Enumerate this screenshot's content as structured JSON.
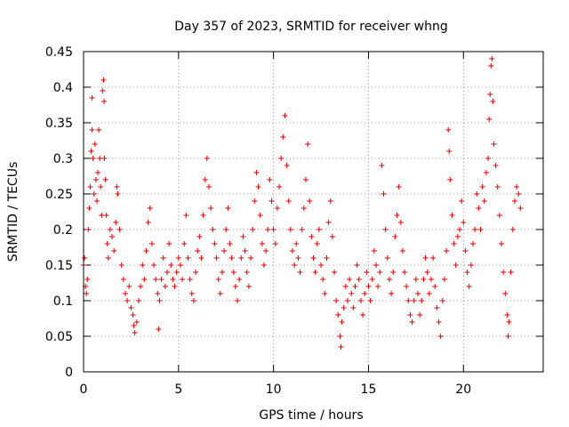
{
  "chart_data": {
    "type": "scatter",
    "title": "Day 357 of 2023, SRMTID for receiver whng",
    "xlabel": "GPS time / hours",
    "ylabel": "SRMTID / TECUs",
    "xlim": [
      0,
      24.2
    ],
    "ylim": [
      0,
      0.45
    ],
    "xticks": [
      0,
      5,
      10,
      15,
      20
    ],
    "xtick_labels": [
      "0",
      "5",
      "10",
      "15",
      "20"
    ],
    "yticks": [
      0,
      0.05,
      0.1,
      0.15,
      0.2,
      0.25,
      0.3,
      0.35,
      0.4,
      0.45
    ],
    "ytick_labels": [
      "0",
      "0.05",
      "0.1",
      "0.15",
      "0.2",
      "0.25",
      "0.3",
      "0.35",
      "0.4",
      "0.45"
    ],
    "grid": true,
    "marker": "+",
    "marker_color": "#e00000",
    "series": [
      {
        "name": "SRMTID",
        "points": [
          [
            0.0,
            0.15
          ],
          [
            0.05,
            0.16
          ],
          [
            0.1,
            0.12
          ],
          [
            0.15,
            0.11
          ],
          [
            0.2,
            0.13
          ],
          [
            0.25,
            0.2
          ],
          [
            0.3,
            0.23
          ],
          [
            0.35,
            0.26
          ],
          [
            0.4,
            0.31
          ],
          [
            0.45,
            0.34
          ],
          [
            0.45,
            0.385
          ],
          [
            0.5,
            0.3
          ],
          [
            0.55,
            0.25
          ],
          [
            0.6,
            0.32
          ],
          [
            0.65,
            0.27
          ],
          [
            0.7,
            0.24
          ],
          [
            0.75,
            0.28
          ],
          [
            0.8,
            0.34
          ],
          [
            0.85,
            0.3
          ],
          [
            0.9,
            0.26
          ],
          [
            0.95,
            0.22
          ],
          [
            1.0,
            0.395
          ],
          [
            1.05,
            0.41
          ],
          [
            1.08,
            0.38
          ],
          [
            1.1,
            0.3
          ],
          [
            1.15,
            0.27
          ],
          [
            1.2,
            0.22
          ],
          [
            1.25,
            0.18
          ],
          [
            1.3,
            0.16
          ],
          [
            1.4,
            0.2
          ],
          [
            1.5,
            0.19
          ],
          [
            1.6,
            0.17
          ],
          [
            1.7,
            0.21
          ],
          [
            1.75,
            0.26
          ],
          [
            1.8,
            0.25
          ],
          [
            1.9,
            0.2
          ],
          [
            2.0,
            0.15
          ],
          [
            2.1,
            0.13
          ],
          [
            2.2,
            0.11
          ],
          [
            2.3,
            0.1
          ],
          [
            2.4,
            0.12
          ],
          [
            2.5,
            0.09
          ],
          [
            2.6,
            0.08
          ],
          [
            2.65,
            0.065
          ],
          [
            2.7,
            0.055
          ],
          [
            2.8,
            0.07
          ],
          [
            2.9,
            0.1
          ],
          [
            3.0,
            0.12
          ],
          [
            3.1,
            0.15
          ],
          [
            3.2,
            0.13
          ],
          [
            3.3,
            0.17
          ],
          [
            3.4,
            0.21
          ],
          [
            3.5,
            0.23
          ],
          [
            3.6,
            0.18
          ],
          [
            3.7,
            0.15
          ],
          [
            3.8,
            0.13
          ],
          [
            3.9,
            0.11
          ],
          [
            3.95,
            0.06
          ],
          [
            4.0,
            0.1
          ],
          [
            4.1,
            0.13
          ],
          [
            4.2,
            0.16
          ],
          [
            4.3,
            0.12
          ],
          [
            4.4,
            0.14
          ],
          [
            4.5,
            0.18
          ],
          [
            4.6,
            0.15
          ],
          [
            4.7,
            0.13
          ],
          [
            4.8,
            0.12
          ],
          [
            4.9,
            0.14
          ],
          [
            5.0,
            0.16
          ],
          [
            5.1,
            0.15
          ],
          [
            5.2,
            0.13
          ],
          [
            5.3,
            0.18
          ],
          [
            5.4,
            0.22
          ],
          [
            5.5,
            0.16
          ],
          [
            5.6,
            0.13
          ],
          [
            5.7,
            0.11
          ],
          [
            5.8,
            0.1
          ],
          [
            5.9,
            0.14
          ],
          [
            6.0,
            0.17
          ],
          [
            6.1,
            0.19
          ],
          [
            6.2,
            0.16
          ],
          [
            6.3,
            0.22
          ],
          [
            6.4,
            0.27
          ],
          [
            6.5,
            0.3
          ],
          [
            6.6,
            0.26
          ],
          [
            6.7,
            0.23
          ],
          [
            6.8,
            0.2
          ],
          [
            6.9,
            0.18
          ],
          [
            7.0,
            0.16
          ],
          [
            7.1,
            0.13
          ],
          [
            7.2,
            0.11
          ],
          [
            7.3,
            0.14
          ],
          [
            7.4,
            0.17
          ],
          [
            7.5,
            0.2
          ],
          [
            7.6,
            0.23
          ],
          [
            7.7,
            0.18
          ],
          [
            7.8,
            0.16
          ],
          [
            7.9,
            0.14
          ],
          [
            8.0,
            0.12
          ],
          [
            8.1,
            0.1
          ],
          [
            8.2,
            0.13
          ],
          [
            8.3,
            0.16
          ],
          [
            8.4,
            0.19
          ],
          [
            8.5,
            0.17
          ],
          [
            8.6,
            0.14
          ],
          [
            8.7,
            0.12
          ],
          [
            8.8,
            0.16
          ],
          [
            8.9,
            0.2
          ],
          [
            9.0,
            0.24
          ],
          [
            9.1,
            0.28
          ],
          [
            9.2,
            0.26
          ],
          [
            9.3,
            0.22
          ],
          [
            9.4,
            0.18
          ],
          [
            9.5,
            0.15
          ],
          [
            9.6,
            0.17
          ],
          [
            9.7,
            0.2
          ],
          [
            9.8,
            0.27
          ],
          [
            9.9,
            0.24
          ],
          [
            10.0,
            0.2
          ],
          [
            10.1,
            0.18
          ],
          [
            10.2,
            0.23
          ],
          [
            10.3,
            0.26
          ],
          [
            10.4,
            0.3
          ],
          [
            10.5,
            0.33
          ],
          [
            10.6,
            0.36
          ],
          [
            10.7,
            0.29
          ],
          [
            10.8,
            0.24
          ],
          [
            10.9,
            0.2
          ],
          [
            11.0,
            0.17
          ],
          [
            11.1,
            0.15
          ],
          [
            11.2,
            0.18
          ],
          [
            11.3,
            0.16
          ],
          [
            11.4,
            0.14
          ],
          [
            11.5,
            0.2
          ],
          [
            11.6,
            0.23
          ],
          [
            11.7,
            0.27
          ],
          [
            11.8,
            0.32
          ],
          [
            11.9,
            0.24
          ],
          [
            12.0,
            0.19
          ],
          [
            12.1,
            0.16
          ],
          [
            12.2,
            0.14
          ],
          [
            12.3,
            0.18
          ],
          [
            12.4,
            0.2
          ],
          [
            12.5,
            0.15
          ],
          [
            12.6,
            0.13
          ],
          [
            12.7,
            0.11
          ],
          [
            12.8,
            0.16
          ],
          [
            12.9,
            0.21
          ],
          [
            13.0,
            0.24
          ],
          [
            13.1,
            0.19
          ],
          [
            13.2,
            0.14
          ],
          [
            13.3,
            0.1
          ],
          [
            13.4,
            0.08
          ],
          [
            13.5,
            0.05
          ],
          [
            13.55,
            0.035
          ],
          [
            13.6,
            0.07
          ],
          [
            13.7,
            0.09
          ],
          [
            13.8,
            0.12
          ],
          [
            13.9,
            0.1
          ],
          [
            14.0,
            0.13
          ],
          [
            14.1,
            0.11
          ],
          [
            14.2,
            0.09
          ],
          [
            14.3,
            0.12
          ],
          [
            14.4,
            0.15
          ],
          [
            14.5,
            0.13
          ],
          [
            14.6,
            0.1
          ],
          [
            14.7,
            0.08
          ],
          [
            14.8,
            0.11
          ],
          [
            14.9,
            0.14
          ],
          [
            15.0,
            0.12
          ],
          [
            15.1,
            0.1
          ],
          [
            15.2,
            0.13
          ],
          [
            15.3,
            0.17
          ],
          [
            15.4,
            0.15
          ],
          [
            15.5,
            0.12
          ],
          [
            15.6,
            0.14
          ],
          [
            15.7,
            0.29
          ],
          [
            15.8,
            0.25
          ],
          [
            15.9,
            0.2
          ],
          [
            16.0,
            0.16
          ],
          [
            16.1,
            0.13
          ],
          [
            16.2,
            0.11
          ],
          [
            16.3,
            0.14
          ],
          [
            16.4,
            0.19
          ],
          [
            16.5,
            0.22
          ],
          [
            16.6,
            0.26
          ],
          [
            16.7,
            0.21
          ],
          [
            16.8,
            0.17
          ],
          [
            16.9,
            0.14
          ],
          [
            17.0,
            0.12
          ],
          [
            17.1,
            0.1
          ],
          [
            17.2,
            0.08
          ],
          [
            17.3,
            0.07
          ],
          [
            17.4,
            0.1
          ],
          [
            17.5,
            0.13
          ],
          [
            17.6,
            0.11
          ],
          [
            17.7,
            0.08
          ],
          [
            17.8,
            0.1
          ],
          [
            17.9,
            0.13
          ],
          [
            18.0,
            0.16
          ],
          [
            18.1,
            0.14
          ],
          [
            18.2,
            0.11
          ],
          [
            18.3,
            0.13
          ],
          [
            18.4,
            0.16
          ],
          [
            18.5,
            0.12
          ],
          [
            18.6,
            0.09
          ],
          [
            18.7,
            0.07
          ],
          [
            18.8,
            0.05
          ],
          [
            18.9,
            0.1
          ],
          [
            19.0,
            0.13
          ],
          [
            19.1,
            0.17
          ],
          [
            19.2,
            0.34
          ],
          [
            19.25,
            0.31
          ],
          [
            19.3,
            0.27
          ],
          [
            19.4,
            0.22
          ],
          [
            19.5,
            0.18
          ],
          [
            19.6,
            0.15
          ],
          [
            19.7,
            0.19
          ],
          [
            19.8,
            0.2
          ],
          [
            19.9,
            0.24
          ],
          [
            20.0,
            0.21
          ],
          [
            20.1,
            0.17
          ],
          [
            20.2,
            0.14
          ],
          [
            20.3,
            0.12
          ],
          [
            20.4,
            0.15
          ],
          [
            20.5,
            0.18
          ],
          [
            20.6,
            0.2
          ],
          [
            20.7,
            0.25
          ],
          [
            20.8,
            0.23
          ],
          [
            20.9,
            0.2
          ],
          [
            21.0,
            0.26
          ],
          [
            21.1,
            0.24
          ],
          [
            21.2,
            0.28
          ],
          [
            21.3,
            0.3
          ],
          [
            21.35,
            0.355
          ],
          [
            21.4,
            0.39
          ],
          [
            21.45,
            0.43
          ],
          [
            21.5,
            0.44
          ],
          [
            21.55,
            0.38
          ],
          [
            21.6,
            0.32
          ],
          [
            21.7,
            0.29
          ],
          [
            21.8,
            0.26
          ],
          [
            21.9,
            0.22
          ],
          [
            22.0,
            0.18
          ],
          [
            22.1,
            0.14
          ],
          [
            22.2,
            0.11
          ],
          [
            22.3,
            0.08
          ],
          [
            22.35,
            0.05
          ],
          [
            22.4,
            0.07
          ],
          [
            22.5,
            0.14
          ],
          [
            22.6,
            0.2
          ],
          [
            22.7,
            0.24
          ],
          [
            22.8,
            0.26
          ],
          [
            22.9,
            0.25
          ],
          [
            23.0,
            0.23
          ]
        ]
      }
    ]
  }
}
